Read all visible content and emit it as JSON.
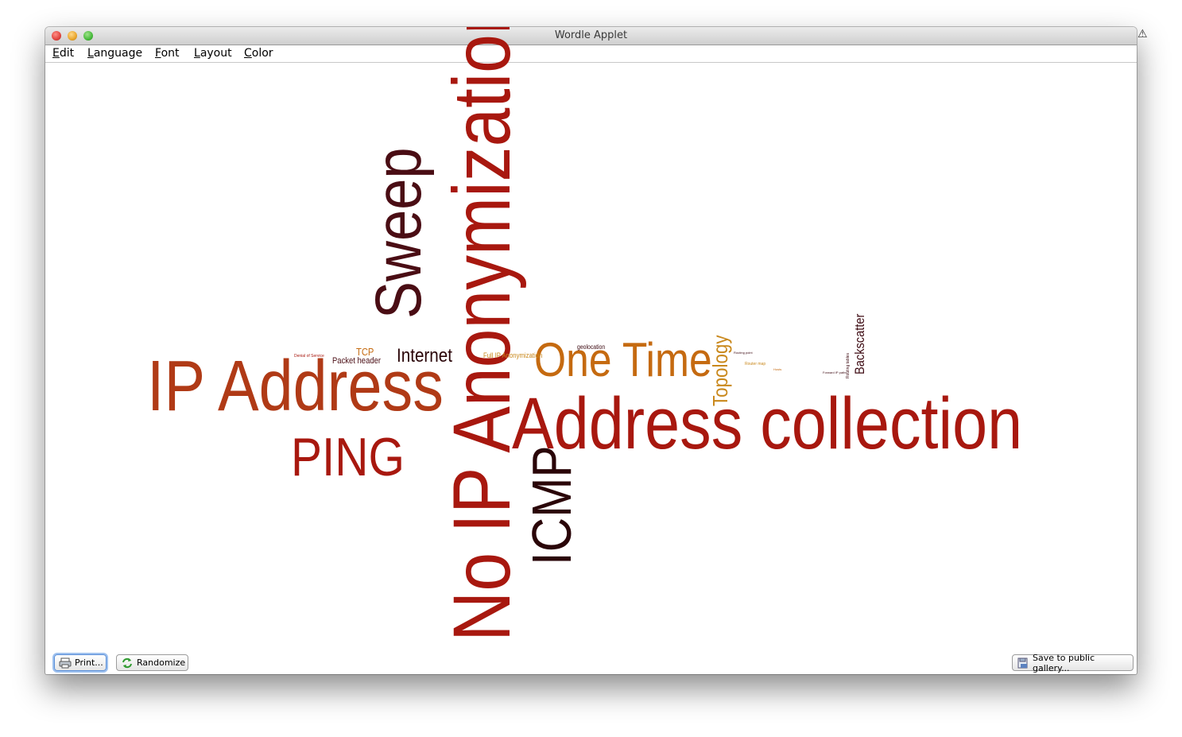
{
  "window": {
    "title": "Wordle Applet",
    "warning_icon": "warning-icon"
  },
  "menu": [
    "Edit",
    "Language",
    "Font",
    "Layout",
    "Color"
  ],
  "colors": {
    "dark": "#3d0a12",
    "red": "#a8180f",
    "rust": "#b03a16",
    "orange": "#c56a10",
    "gold": "#c9881c"
  },
  "words": [
    {
      "text": "No IP Anonymization",
      "color": "#a8180f"
    },
    {
      "text": "Address collection",
      "color": "#a8180f"
    },
    {
      "text": "IP Address",
      "color": "#b03a16"
    },
    {
      "text": "Sweep",
      "color": "#4a0d14"
    },
    {
      "text": "PING",
      "color": "#a8180f"
    },
    {
      "text": "ICMP",
      "color": "#2a0508"
    },
    {
      "text": "One Time",
      "color": "#c56a10"
    },
    {
      "text": "Internet",
      "color": "#2a0508"
    },
    {
      "text": "Topology",
      "color": "#c9881c"
    },
    {
      "text": "Backscatter",
      "color": "#3d0a12"
    },
    {
      "text": "TCP",
      "color": "#c56a10"
    },
    {
      "text": "Packet header",
      "color": "#4a0d14"
    },
    {
      "text": "Full IP Anonymization",
      "color": "#c9881c"
    },
    {
      "text": "geolocation",
      "color": "#3d0a12"
    },
    {
      "text": "Denial of Service",
      "color": "#a8180f"
    },
    {
      "text": "Router map",
      "color": "#c9881c"
    },
    {
      "text": "Routing point",
      "color": "#3d0a12"
    },
    {
      "text": "Routing tables",
      "color": "#3d0a12"
    },
    {
      "text": "Forward IP paths",
      "color": "#3d0a12"
    },
    {
      "text": "Hosts",
      "color": "#c56a10"
    }
  ],
  "buttons": {
    "print": "Print...",
    "randomize": "Randomize",
    "save_gallery": "Save to public gallery..."
  }
}
